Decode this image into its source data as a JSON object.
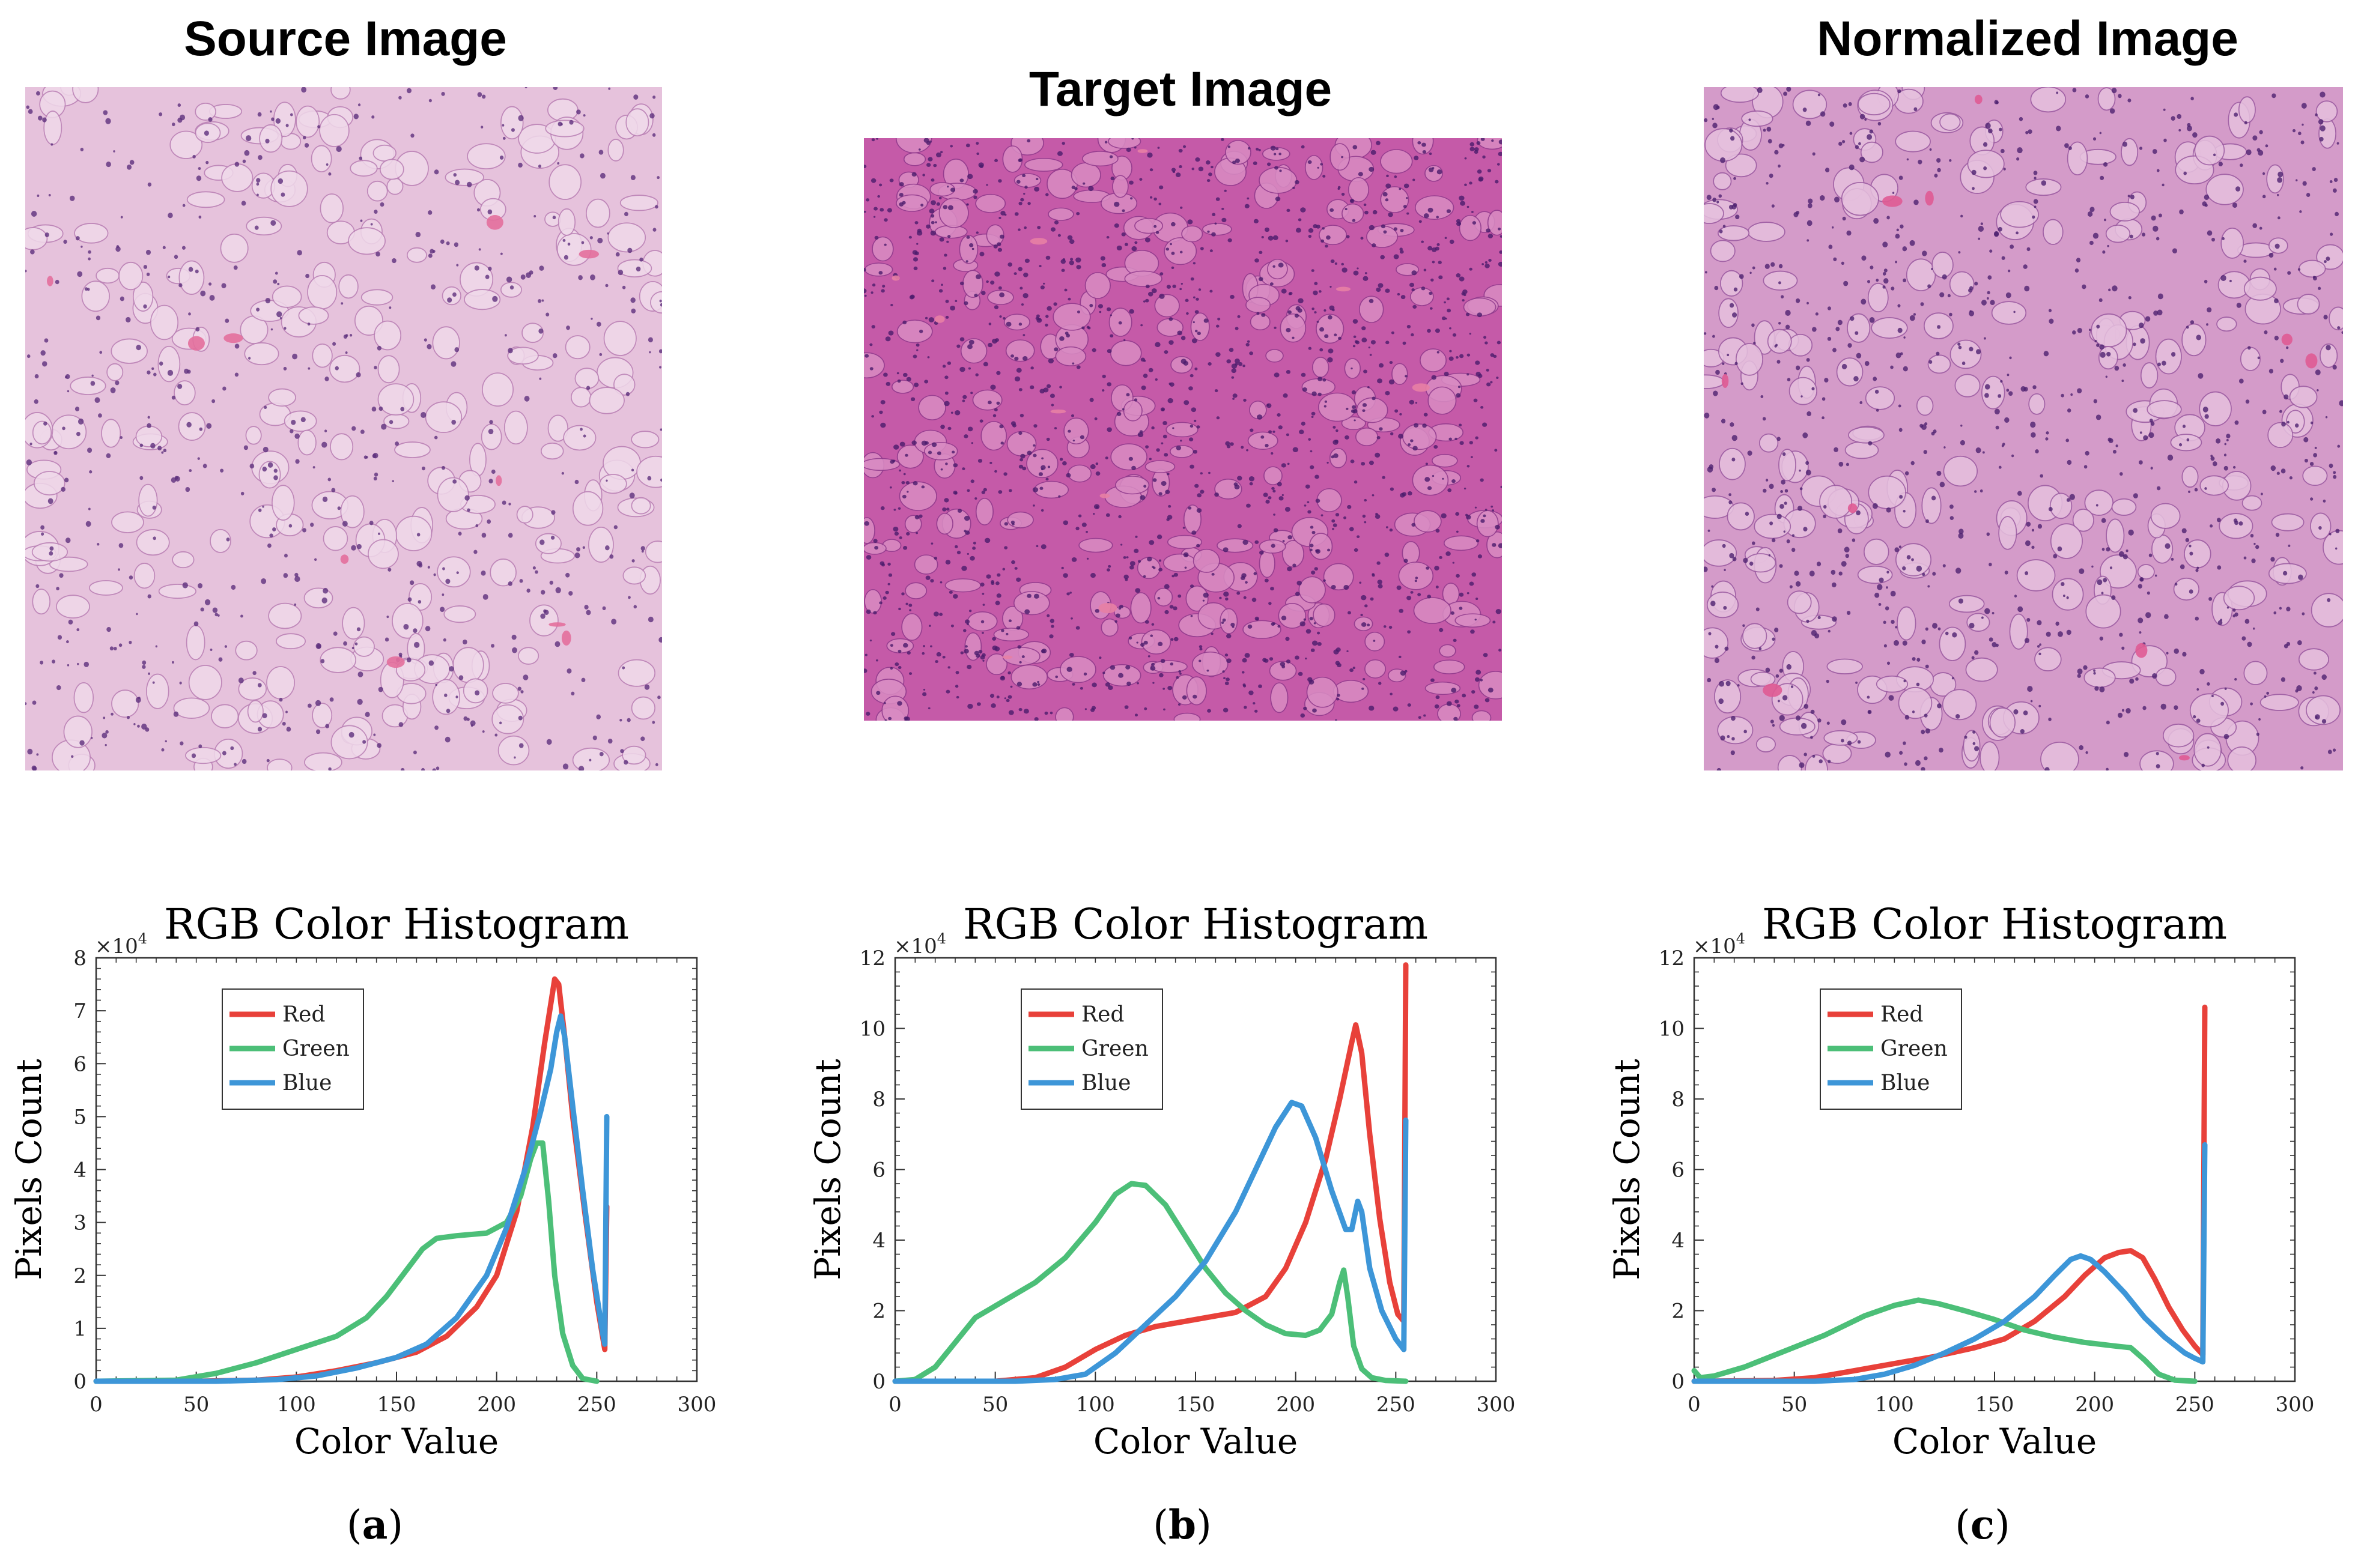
{
  "images": [
    {
      "title": "Source Image"
    },
    {
      "title": "Target Image"
    },
    {
      "title": "Normalized Image"
    }
  ],
  "colors": {
    "red": "#e8413a",
    "green": "#4cbf78",
    "blue": "#3d96d8"
  },
  "sub_labels": [
    {
      "open": "(",
      "letter": "a",
      "close": ")"
    },
    {
      "open": "(",
      "letter": "b",
      "close": ")"
    },
    {
      "open": "(",
      "letter": "c",
      "close": ")"
    }
  ],
  "chart_data": [
    {
      "type": "line",
      "title": "RGB Color Histogram",
      "xlabel": "Color Value",
      "ylabel": "Pixels Count",
      "y_multiplier": "×10",
      "y_multiplier_exp": "4",
      "xlim": [
        0,
        300
      ],
      "ylim": [
        0,
        8
      ],
      "xticks": [
        0,
        50,
        100,
        150,
        200,
        250,
        300
      ],
      "yticks": [
        0,
        1,
        2,
        3,
        4,
        5,
        6,
        7,
        8
      ],
      "grid": false,
      "legend_position": "top-left",
      "series": [
        {
          "name": "Red",
          "color": "red",
          "points": [
            [
              0,
              0
            ],
            [
              50,
              0
            ],
            [
              80,
              0.02
            ],
            [
              100,
              0.08
            ],
            [
              120,
              0.2
            ],
            [
              140,
              0.35
            ],
            [
              160,
              0.55
            ],
            [
              175,
              0.85
            ],
            [
              190,
              1.4
            ],
            [
              200,
              2.0
            ],
            [
              210,
              3.2
            ],
            [
              218,
              4.8
            ],
            [
              224,
              6.4
            ],
            [
              229,
              7.6
            ],
            [
              231,
              7.5
            ],
            [
              234,
              6.5
            ],
            [
              238,
              5.0
            ],
            [
              244,
              3.2
            ],
            [
              250,
              1.5
            ],
            [
              254,
              0.6
            ],
            [
              255,
              3.3
            ]
          ]
        },
        {
          "name": "Green",
          "color": "green",
          "points": [
            [
              0,
              0
            ],
            [
              40,
              0.02
            ],
            [
              60,
              0.15
            ],
            [
              80,
              0.35
            ],
            [
              100,
              0.6
            ],
            [
              120,
              0.85
            ],
            [
              135,
              1.2
            ],
            [
              145,
              1.6
            ],
            [
              155,
              2.1
            ],
            [
              163,
              2.5
            ],
            [
              170,
              2.7
            ],
            [
              180,
              2.75
            ],
            [
              195,
              2.8
            ],
            [
              205,
              3.0
            ],
            [
              212,
              3.5
            ],
            [
              217,
              4.2
            ],
            [
              220,
              4.5
            ],
            [
              223,
              4.5
            ],
            [
              226,
              3.4
            ],
            [
              229,
              2.0
            ],
            [
              233,
              0.9
            ],
            [
              238,
              0.3
            ],
            [
              243,
              0.05
            ],
            [
              250,
              0
            ]
          ]
        },
        {
          "name": "Blue",
          "color": "blue",
          "points": [
            [
              0,
              0
            ],
            [
              60,
              0
            ],
            [
              90,
              0.03
            ],
            [
              110,
              0.1
            ],
            [
              130,
              0.25
            ],
            [
              150,
              0.45
            ],
            [
              165,
              0.7
            ],
            [
              180,
              1.2
            ],
            [
              195,
              2.0
            ],
            [
              205,
              2.9
            ],
            [
              215,
              4.1
            ],
            [
              222,
              5.1
            ],
            [
              227,
              5.9
            ],
            [
              230,
              6.6
            ],
            [
              232,
              6.9
            ],
            [
              234,
              6.5
            ],
            [
              238,
              5.2
            ],
            [
              243,
              3.6
            ],
            [
              248,
              2.1
            ],
            [
              253,
              0.9
            ],
            [
              254,
              0.7
            ],
            [
              255,
              5.0
            ]
          ]
        }
      ]
    },
    {
      "type": "line",
      "title": "RGB Color Histogram",
      "xlabel": "Color Value",
      "ylabel": "Pixels Count",
      "y_multiplier": "×10",
      "y_multiplier_exp": "4",
      "xlim": [
        0,
        300
      ],
      "ylim": [
        0,
        12
      ],
      "xticks": [
        0,
        50,
        100,
        150,
        200,
        250,
        300
      ],
      "yticks": [
        0,
        2,
        4,
        6,
        8,
        10,
        12
      ],
      "grid": false,
      "legend_position": "top-left",
      "series": [
        {
          "name": "Red",
          "color": "red",
          "points": [
            [
              0,
              0
            ],
            [
              50,
              0
            ],
            [
              70,
              0.1
            ],
            [
              85,
              0.4
            ],
            [
              100,
              0.9
            ],
            [
              115,
              1.3
            ],
            [
              130,
              1.55
            ],
            [
              150,
              1.75
            ],
            [
              170,
              1.95
            ],
            [
              185,
              2.4
            ],
            [
              195,
              3.2
            ],
            [
              205,
              4.5
            ],
            [
              215,
              6.3
            ],
            [
              222,
              8.0
            ],
            [
              228,
              9.6
            ],
            [
              230,
              10.1
            ],
            [
              233,
              9.3
            ],
            [
              237,
              7.0
            ],
            [
              242,
              4.6
            ],
            [
              247,
              2.8
            ],
            [
              251,
              1.9
            ],
            [
              254,
              1.7
            ],
            [
              255,
              11.8
            ]
          ]
        },
        {
          "name": "Green",
          "color": "green",
          "points": [
            [
              0,
              0
            ],
            [
              10,
              0.05
            ],
            [
              20,
              0.4
            ],
            [
              30,
              1.1
            ],
            [
              40,
              1.8
            ],
            [
              55,
              2.3
            ],
            [
              70,
              2.8
            ],
            [
              85,
              3.5
            ],
            [
              100,
              4.5
            ],
            [
              110,
              5.3
            ],
            [
              118,
              5.6
            ],
            [
              125,
              5.55
            ],
            [
              135,
              5.0
            ],
            [
              145,
              4.1
            ],
            [
              155,
              3.2
            ],
            [
              165,
              2.5
            ],
            [
              175,
              2.0
            ],
            [
              185,
              1.6
            ],
            [
              195,
              1.35
            ],
            [
              205,
              1.3
            ],
            [
              212,
              1.45
            ],
            [
              218,
              1.9
            ],
            [
              222,
              2.8
            ],
            [
              224,
              3.15
            ],
            [
              226,
              2.4
            ],
            [
              229,
              1.0
            ],
            [
              233,
              0.35
            ],
            [
              238,
              0.1
            ],
            [
              245,
              0.02
            ],
            [
              255,
              0
            ]
          ]
        },
        {
          "name": "Blue",
          "color": "blue",
          "points": [
            [
              0,
              0
            ],
            [
              60,
              0
            ],
            [
              80,
              0.05
            ],
            [
              95,
              0.2
            ],
            [
              110,
              0.8
            ],
            [
              125,
              1.6
            ],
            [
              140,
              2.4
            ],
            [
              155,
              3.4
            ],
            [
              170,
              4.8
            ],
            [
              180,
              6.0
            ],
            [
              190,
              7.2
            ],
            [
              198,
              7.9
            ],
            [
              203,
              7.8
            ],
            [
              210,
              6.9
            ],
            [
              218,
              5.4
            ],
            [
              225,
              4.3
            ],
            [
              228,
              4.3
            ],
            [
              231,
              5.1
            ],
            [
              233,
              4.8
            ],
            [
              237,
              3.2
            ],
            [
              243,
              2.0
            ],
            [
              250,
              1.2
            ],
            [
              254,
              0.9
            ],
            [
              255,
              7.4
            ]
          ]
        }
      ]
    },
    {
      "type": "line",
      "title": "RGB Color Histogram",
      "xlabel": "Color Value",
      "ylabel": "Pixels Count",
      "y_multiplier": "×10",
      "y_multiplier_exp": "4",
      "xlim": [
        0,
        300
      ],
      "ylim": [
        0,
        12
      ],
      "xticks": [
        0,
        50,
        100,
        150,
        200,
        250,
        300
      ],
      "yticks": [
        0,
        2,
        4,
        6,
        8,
        10,
        12
      ],
      "grid": false,
      "legend_position": "top-left",
      "series": [
        {
          "name": "Red",
          "color": "red",
          "points": [
            [
              0,
              0
            ],
            [
              40,
              0.02
            ],
            [
              60,
              0.1
            ],
            [
              80,
              0.3
            ],
            [
              100,
              0.5
            ],
            [
              120,
              0.7
            ],
            [
              140,
              0.95
            ],
            [
              155,
              1.2
            ],
            [
              170,
              1.7
            ],
            [
              185,
              2.4
            ],
            [
              195,
              3.0
            ],
            [
              205,
              3.5
            ],
            [
              212,
              3.65
            ],
            [
              218,
              3.7
            ],
            [
              224,
              3.5
            ],
            [
              230,
              2.9
            ],
            [
              237,
              2.1
            ],
            [
              244,
              1.45
            ],
            [
              250,
              1.0
            ],
            [
              254,
              0.75
            ],
            [
              255,
              10.6
            ]
          ]
        },
        {
          "name": "Green",
          "color": "green",
          "points": [
            [
              0,
              0.3
            ],
            [
              3,
              0.1
            ],
            [
              10,
              0.15
            ],
            [
              25,
              0.4
            ],
            [
              45,
              0.85
            ],
            [
              65,
              1.3
            ],
            [
              85,
              1.85
            ],
            [
              100,
              2.15
            ],
            [
              112,
              2.3
            ],
            [
              122,
              2.2
            ],
            [
              135,
              2.0
            ],
            [
              150,
              1.75
            ],
            [
              165,
              1.45
            ],
            [
              180,
              1.25
            ],
            [
              195,
              1.1
            ],
            [
              210,
              1.0
            ],
            [
              218,
              0.95
            ],
            [
              225,
              0.6
            ],
            [
              232,
              0.2
            ],
            [
              240,
              0.03
            ],
            [
              250,
              0
            ]
          ]
        },
        {
          "name": "Blue",
          "color": "blue",
          "points": [
            [
              0,
              0
            ],
            [
              60,
              0
            ],
            [
              80,
              0.05
            ],
            [
              95,
              0.2
            ],
            [
              110,
              0.45
            ],
            [
              125,
              0.8
            ],
            [
              140,
              1.2
            ],
            [
              155,
              1.7
            ],
            [
              170,
              2.4
            ],
            [
              180,
              3.0
            ],
            [
              188,
              3.45
            ],
            [
              193,
              3.55
            ],
            [
              198,
              3.45
            ],
            [
              205,
              3.1
            ],
            [
              215,
              2.5
            ],
            [
              225,
              1.8
            ],
            [
              235,
              1.25
            ],
            [
              245,
              0.8
            ],
            [
              250,
              0.65
            ],
            [
              254,
              0.55
            ],
            [
              255,
              6.7
            ]
          ]
        }
      ]
    }
  ]
}
